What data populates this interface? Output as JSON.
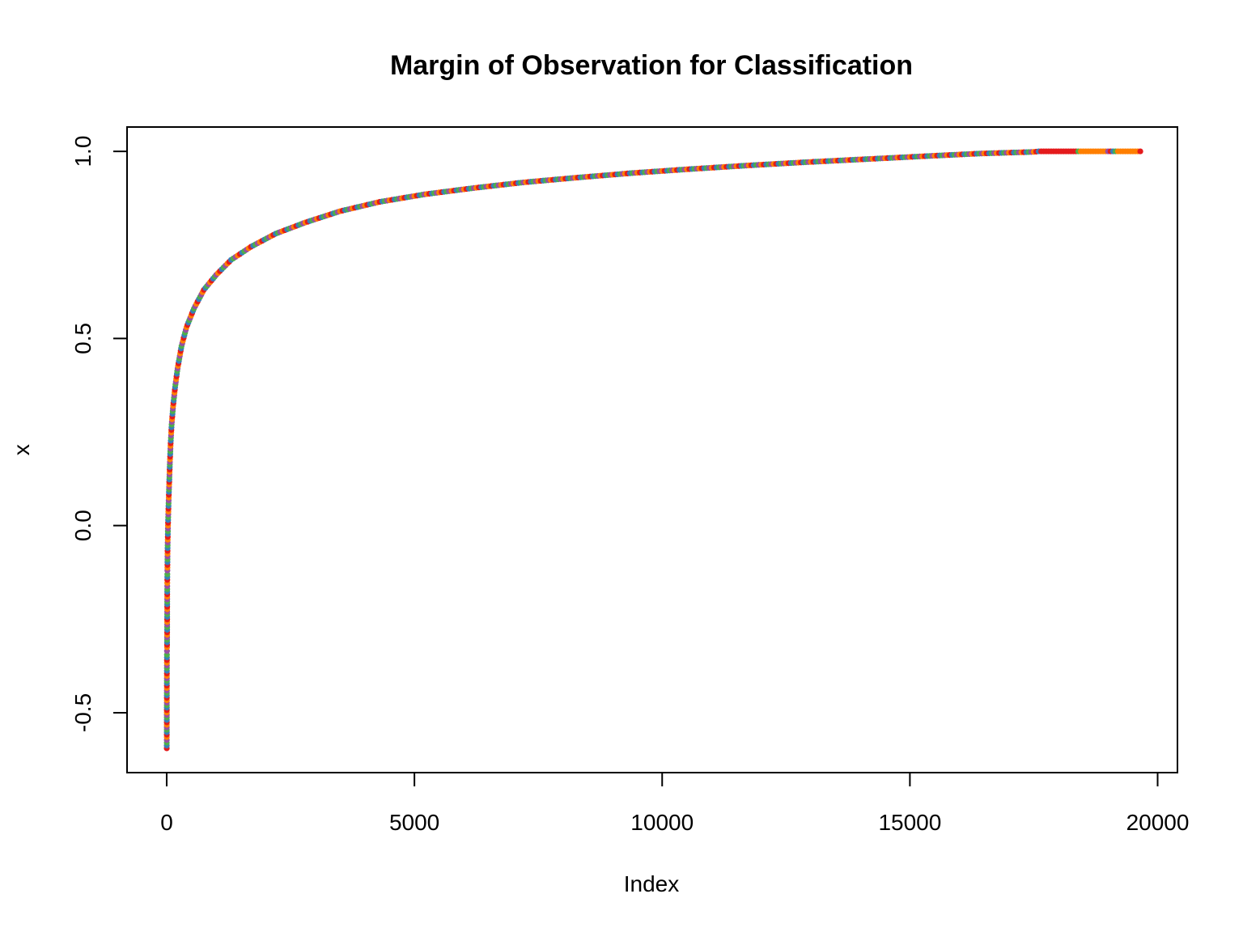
{
  "chart_data": {
    "type": "scatter",
    "title": "Margin of Observation for Classification",
    "xlabel": "Index",
    "ylabel": "x",
    "xlim": [
      -800,
      20400
    ],
    "ylim": [
      -0.66,
      1.065
    ],
    "x_ticks": [
      0,
      5000,
      10000,
      15000,
      20000
    ],
    "x_tick_labels": [
      "0",
      "5000",
      "10000",
      "15000",
      "20000"
    ],
    "y_ticks": [
      -0.5,
      0.0,
      0.5,
      1.0
    ],
    "y_tick_labels": [
      "-0.5",
      "0.0",
      "0.5",
      "1.0"
    ],
    "grid": false,
    "legend": "none",
    "colors": [
      "#E41A1C",
      "#377EB8",
      "#4DAF4A",
      "#984EA3",
      "#FF7F00"
    ],
    "series": [
      {
        "values": [
          {
            "x": 1,
            "y": -0.595
          },
          {
            "x": 2,
            "y": -0.565
          },
          {
            "x": 3,
            "y": -0.46
          },
          {
            "x": 4,
            "y": -0.395
          },
          {
            "x": 5,
            "y": -0.345
          },
          {
            "x": 6,
            "y": -0.335
          },
          {
            "x": 7,
            "y": -0.325
          },
          {
            "x": 8,
            "y": -0.305
          },
          {
            "x": 9,
            "y": -0.285
          },
          {
            "x": 10,
            "y": -0.23
          },
          {
            "x": 11,
            "y": -0.17
          },
          {
            "x": 12,
            "y": -0.145
          },
          {
            "x": 13,
            "y": -0.13
          },
          {
            "x": 14,
            "y": -0.12
          },
          {
            "x": 16,
            "y": -0.09
          },
          {
            "x": 18,
            "y": -0.06
          },
          {
            "x": 22,
            "y": -0.03
          },
          {
            "x": 26,
            "y": 0.0
          },
          {
            "x": 32,
            "y": 0.03
          },
          {
            "x": 38,
            "y": 0.06
          },
          {
            "x": 45,
            "y": 0.09
          },
          {
            "x": 55,
            "y": 0.13
          },
          {
            "x": 65,
            "y": 0.17
          },
          {
            "x": 80,
            "y": 0.22
          },
          {
            "x": 100,
            "y": 0.27
          },
          {
            "x": 130,
            "y": 0.32
          },
          {
            "x": 170,
            "y": 0.37
          },
          {
            "x": 220,
            "y": 0.42
          },
          {
            "x": 300,
            "y": 0.48
          },
          {
            "x": 400,
            "y": 0.53
          },
          {
            "x": 550,
            "y": 0.58
          },
          {
            "x": 750,
            "y": 0.63
          },
          {
            "x": 1000,
            "y": 0.67
          },
          {
            "x": 1300,
            "y": 0.71
          },
          {
            "x": 1700,
            "y": 0.745
          },
          {
            "x": 2200,
            "y": 0.78
          },
          {
            "x": 2800,
            "y": 0.81
          },
          {
            "x": 3500,
            "y": 0.84
          },
          {
            "x": 4300,
            "y": 0.865
          },
          {
            "x": 5200,
            "y": 0.885
          },
          {
            "x": 6200,
            "y": 0.902
          },
          {
            "x": 7200,
            "y": 0.917
          },
          {
            "x": 8300,
            "y": 0.93
          },
          {
            "x": 9400,
            "y": 0.942
          },
          {
            "x": 10500,
            "y": 0.952
          },
          {
            "x": 11700,
            "y": 0.962
          },
          {
            "x": 12900,
            "y": 0.971
          },
          {
            "x": 14100,
            "y": 0.979
          },
          {
            "x": 15300,
            "y": 0.987
          },
          {
            "x": 16400,
            "y": 0.994
          },
          {
            "x": 17500,
            "y": 0.9985
          },
          {
            "x": 17600,
            "y": 1.0
          },
          {
            "x": 18400,
            "y": 1.0
          },
          {
            "x": 19000,
            "y": 1.0
          },
          {
            "x": 19200,
            "y": 1.0
          },
          {
            "x": 19650,
            "y": 1.0
          }
        ]
      }
    ]
  }
}
